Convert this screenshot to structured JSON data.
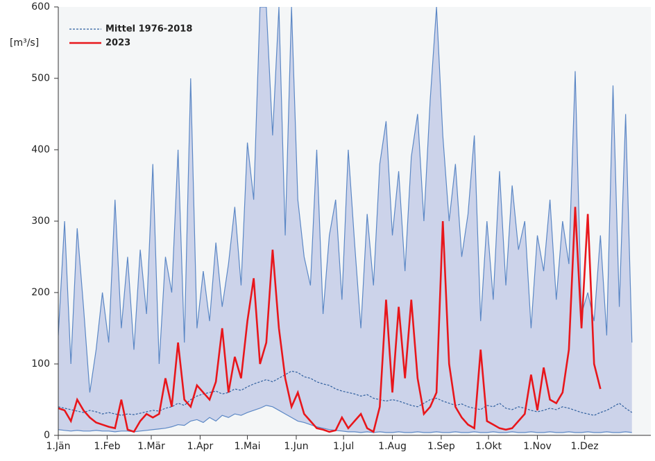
{
  "chart_data": {
    "type": "line",
    "y_label": "[m³/s]",
    "x": [
      0,
      4,
      8,
      12,
      16,
      20,
      24,
      28,
      32,
      36,
      40,
      44,
      48,
      52,
      56,
      60,
      64,
      68,
      72,
      76,
      80,
      84,
      88,
      92,
      96,
      100,
      104,
      108,
      112,
      116,
      120,
      124,
      128,
      132,
      136,
      140,
      144,
      148,
      152,
      156,
      160,
      164,
      168,
      172,
      176,
      180,
      184,
      188,
      192,
      196,
      200,
      204,
      208,
      212,
      216,
      220,
      224,
      228,
      232,
      236,
      240,
      244,
      248,
      252,
      256,
      260,
      264,
      268,
      272,
      276,
      280,
      284,
      288,
      292,
      296,
      300,
      304,
      308,
      312,
      316,
      320,
      324,
      328,
      332,
      336,
      340,
      344,
      348,
      352,
      356,
      360,
      364
    ],
    "band": {
      "color": "#ccd3ea",
      "line_color": "#5b87c5",
      "upper": [
        140,
        300,
        100,
        290,
        180,
        60,
        120,
        200,
        130,
        330,
        150,
        250,
        120,
        260,
        170,
        380,
        100,
        250,
        200,
        400,
        130,
        500,
        150,
        230,
        160,
        270,
        180,
        240,
        320,
        210,
        410,
        330,
        600,
        600,
        420,
        600,
        280,
        600,
        330,
        250,
        210,
        400,
        170,
        280,
        330,
        190,
        400,
        270,
        150,
        310,
        210,
        380,
        440,
        280,
        370,
        230,
        390,
        450,
        300,
        470,
        600,
        420,
        300,
        380,
        250,
        310,
        420,
        160,
        300,
        190,
        370,
        210,
        350,
        260,
        300,
        150,
        280,
        230,
        330,
        190,
        300,
        240,
        510,
        170,
        200,
        160,
        280,
        140,
        490,
        180,
        450,
        130
      ],
      "lower": [
        8,
        7,
        6,
        7,
        6,
        6,
        7,
        6,
        6,
        5,
        6,
        6,
        5,
        6,
        7,
        8,
        9,
        10,
        12,
        15,
        14,
        20,
        22,
        18,
        25,
        20,
        28,
        25,
        30,
        28,
        32,
        35,
        38,
        42,
        40,
        35,
        30,
        25,
        20,
        18,
        15,
        12,
        10,
        8,
        7,
        6,
        5,
        5,
        4,
        5,
        4,
        5,
        4,
        4,
        5,
        4,
        4,
        5,
        4,
        4,
        5,
        4,
        4,
        5,
        4,
        4,
        5,
        4,
        4,
        5,
        4,
        4,
        5,
        4,
        4,
        5,
        4,
        4,
        5,
        4,
        4,
        5,
        4,
        4,
        5,
        4,
        4,
        5,
        4,
        4,
        5,
        4
      ]
    },
    "series": [
      {
        "name": "Mittel 1976-2018",
        "color": "#2f5f9e",
        "dashed": true,
        "values": [
          40,
          38,
          36,
          34,
          32,
          35,
          33,
          30,
          32,
          30,
          28,
          30,
          29,
          31,
          33,
          35,
          34,
          38,
          40,
          45,
          42,
          50,
          55,
          58,
          60,
          62,
          58,
          60,
          65,
          63,
          68,
          72,
          75,
          78,
          75,
          80,
          85,
          90,
          88,
          82,
          80,
          75,
          72,
          70,
          65,
          62,
          60,
          58,
          55,
          57,
          52,
          50,
          48,
          50,
          48,
          45,
          42,
          40,
          45,
          50,
          52,
          48,
          45,
          42,
          44,
          40,
          38,
          36,
          42,
          40,
          45,
          38,
          36,
          40,
          38,
          35,
          33,
          35,
          38,
          36,
          40,
          38,
          35,
          32,
          30,
          28,
          32,
          35,
          40,
          45,
          38,
          32
        ]
      },
      {
        "name": "2023",
        "color": "#e8161b",
        "dashed": false,
        "values": [
          38,
          35,
          20,
          50,
          35,
          25,
          18,
          15,
          12,
          10,
          50,
          8,
          5,
          20,
          30,
          25,
          30,
          80,
          40,
          130,
          50,
          40,
          70,
          60,
          50,
          75,
          150,
          60,
          110,
          80,
          160,
          220,
          100,
          130,
          260,
          150,
          80,
          40,
          60,
          30,
          20,
          10,
          8,
          5,
          7,
          25,
          10,
          20,
          30,
          10,
          5,
          40,
          190,
          60,
          180,
          80,
          190,
          80,
          30,
          40,
          60,
          300,
          100,
          40,
          25,
          15,
          10,
          120,
          20,
          15,
          10,
          8,
          10,
          20,
          30,
          85,
          35,
          95,
          50,
          45,
          60,
          120,
          320,
          150,
          310,
          100,
          65,
          null,
          null,
          null,
          null,
          null
        ]
      }
    ],
    "xlim": [
      0,
      376
    ],
    "xticks": [
      {
        "value": 0,
        "label": "1.Jän"
      },
      {
        "value": 31,
        "label": "1.Feb"
      },
      {
        "value": 59,
        "label": "1.Mär"
      },
      {
        "value": 90,
        "label": "1.Apr"
      },
      {
        "value": 120,
        "label": "1.Mai"
      },
      {
        "value": 151,
        "label": "1.Jun"
      },
      {
        "value": 181,
        "label": "1.Jul"
      },
      {
        "value": 212,
        "label": "1.Aug"
      },
      {
        "value": 243,
        "label": "1.Sep"
      },
      {
        "value": 273,
        "label": "1.Okt"
      },
      {
        "value": 304,
        "label": "1.Nov"
      },
      {
        "value": 334,
        "label": "1.Dez"
      }
    ],
    "ylim": [
      0,
      600
    ],
    "yticks": [
      0,
      100,
      200,
      300,
      400,
      500,
      600
    ],
    "legend": "upper-left"
  }
}
